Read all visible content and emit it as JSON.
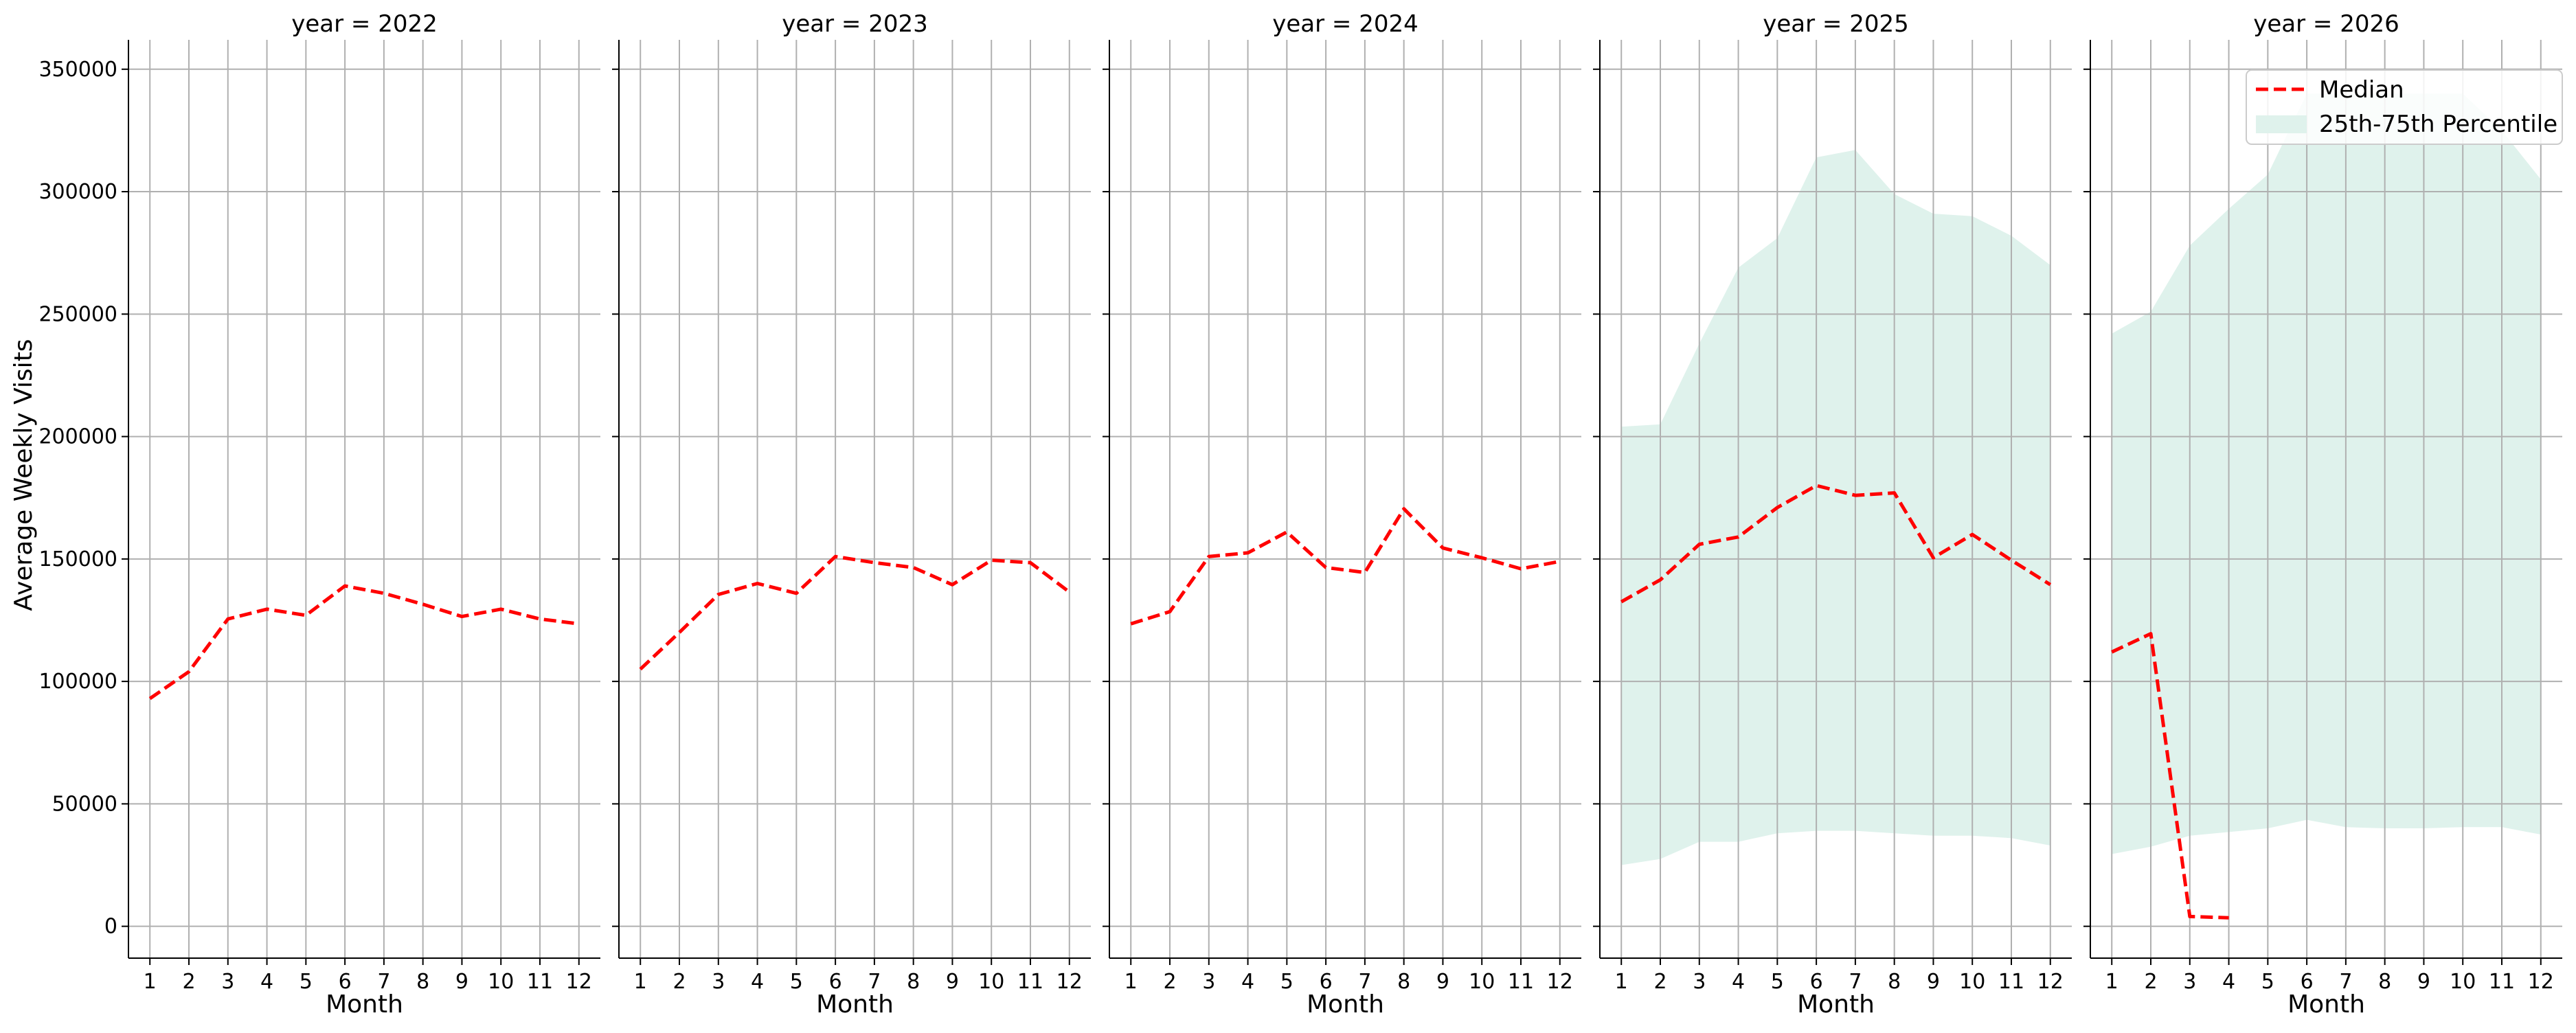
{
  "chart_data": {
    "type": "line",
    "ylabel": "Average Weekly Visits",
    "xlabel": "Month",
    "x": [
      1,
      2,
      3,
      4,
      5,
      6,
      7,
      8,
      9,
      10,
      11,
      12
    ],
    "x_ticks": [
      "1",
      "2",
      "3",
      "4",
      "5",
      "6",
      "7",
      "8",
      "9",
      "10",
      "11",
      "12"
    ],
    "y_ticks": [
      "0",
      "50000",
      "100000",
      "150000",
      "200000",
      "250000",
      "300000",
      "350000"
    ],
    "y_tick_values": [
      0,
      50000,
      100000,
      150000,
      200000,
      250000,
      300000,
      350000
    ],
    "ylim": [
      -13000,
      362000
    ],
    "xlim": [
      0.45,
      12.55
    ],
    "grid": true,
    "legend": {
      "placement": "top-right",
      "median_label": "Median",
      "band_label": "25th-75th Percentile"
    },
    "colors": {
      "median": "#ff0000",
      "band": "#dff2ec",
      "grid": "#b0b0b0",
      "axis": "#000000"
    },
    "panels": [
      {
        "title": "year = 2022",
        "median": [
          93000,
          104000,
          125500,
          129500,
          127000,
          139000,
          136000,
          131500,
          126500,
          129500,
          125500,
          123500
        ],
        "p25": null,
        "p75": null
      },
      {
        "title": "year = 2023",
        "median": [
          105000,
          120000,
          135500,
          140000,
          136000,
          151000,
          148500,
          146500,
          139500,
          149500,
          148500,
          136500
        ],
        "p25": null,
        "p75": null
      },
      {
        "title": "year = 2024",
        "median": [
          123500,
          128500,
          151000,
          152500,
          161000,
          146500,
          144500,
          170500,
          154500,
          150500,
          146000,
          149000
        ],
        "p25": null,
        "p75": null
      },
      {
        "title": "year = 2025",
        "median": [
          132500,
          141500,
          156000,
          159000,
          171000,
          180000,
          176000,
          177000,
          150500,
          160000,
          149500,
          139500
        ],
        "p25": [
          25000,
          27500,
          34500,
          34500,
          38000,
          39000,
          39000,
          38000,
          37000,
          37000,
          36000,
          33000
        ],
        "p75": [
          204000,
          205000,
          238000,
          269000,
          281000,
          314000,
          317000,
          299000,
          291000,
          290000,
          282000,
          270000
        ]
      },
      {
        "title": "year = 2026",
        "median": [
          112000,
          119500,
          4000,
          3500,
          null,
          null,
          null,
          null,
          null,
          null,
          null,
          null
        ],
        "p25": [
          29500,
          32500,
          37000,
          38500,
          40000,
          43500,
          40500,
          40000,
          40000,
          40500,
          40500,
          37500
        ],
        "p75": [
          242000,
          251000,
          278000,
          293000,
          307000,
          340000,
          340000,
          340000,
          340000,
          340000,
          325000,
          305000
        ]
      }
    ]
  }
}
